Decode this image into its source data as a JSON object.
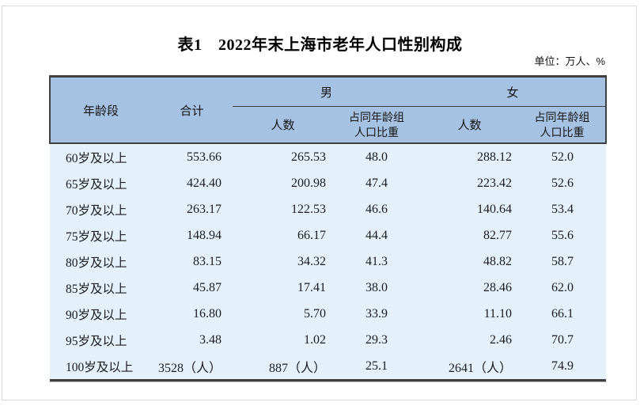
{
  "page": {
    "title": "表1　2022年末上海市老年人口性别构成",
    "unit_label": "单位：万人、%"
  },
  "theme": {
    "header_bg": "#a5c2e2",
    "body_bg": "#e4f0fa",
    "border": "#3f3f3f",
    "frame": "#d9d9d9"
  },
  "table": {
    "header": {
      "age": "年龄段",
      "total": "合计",
      "male": "男",
      "female": "女",
      "count": "人数",
      "share": "占同年龄组\n人口比重"
    },
    "rows": [
      [
        "60岁及以上",
        "553.66",
        "265.53",
        "48.0",
        "288.12",
        "52.0"
      ],
      [
        "65岁及以上",
        "424.40",
        "200.98",
        "47.4",
        "223.42",
        "52.6"
      ],
      [
        "70岁及以上",
        "263.17",
        "122.53",
        "46.6",
        "140.64",
        "53.4"
      ],
      [
        "75岁及以上",
        "148.94",
        "66.17",
        "44.4",
        "82.77",
        "55.6"
      ],
      [
        "80岁及以上",
        "83.15",
        "34.32",
        "41.3",
        "48.82",
        "58.7"
      ],
      [
        "85岁及以上",
        "45.87",
        "17.41",
        "38.0",
        "28.46",
        "62.0"
      ],
      [
        "90岁及以上",
        "16.80",
        "5.70",
        "33.9",
        "11.10",
        "66.1"
      ],
      [
        "95岁及以上",
        "3.48",
        "1.02",
        "29.3",
        "2.46",
        "70.7"
      ],
      [
        "100岁及以上",
        "3528（人）",
        "887（人）",
        "25.1",
        "2641（人）",
        "74.9"
      ]
    ]
  }
}
